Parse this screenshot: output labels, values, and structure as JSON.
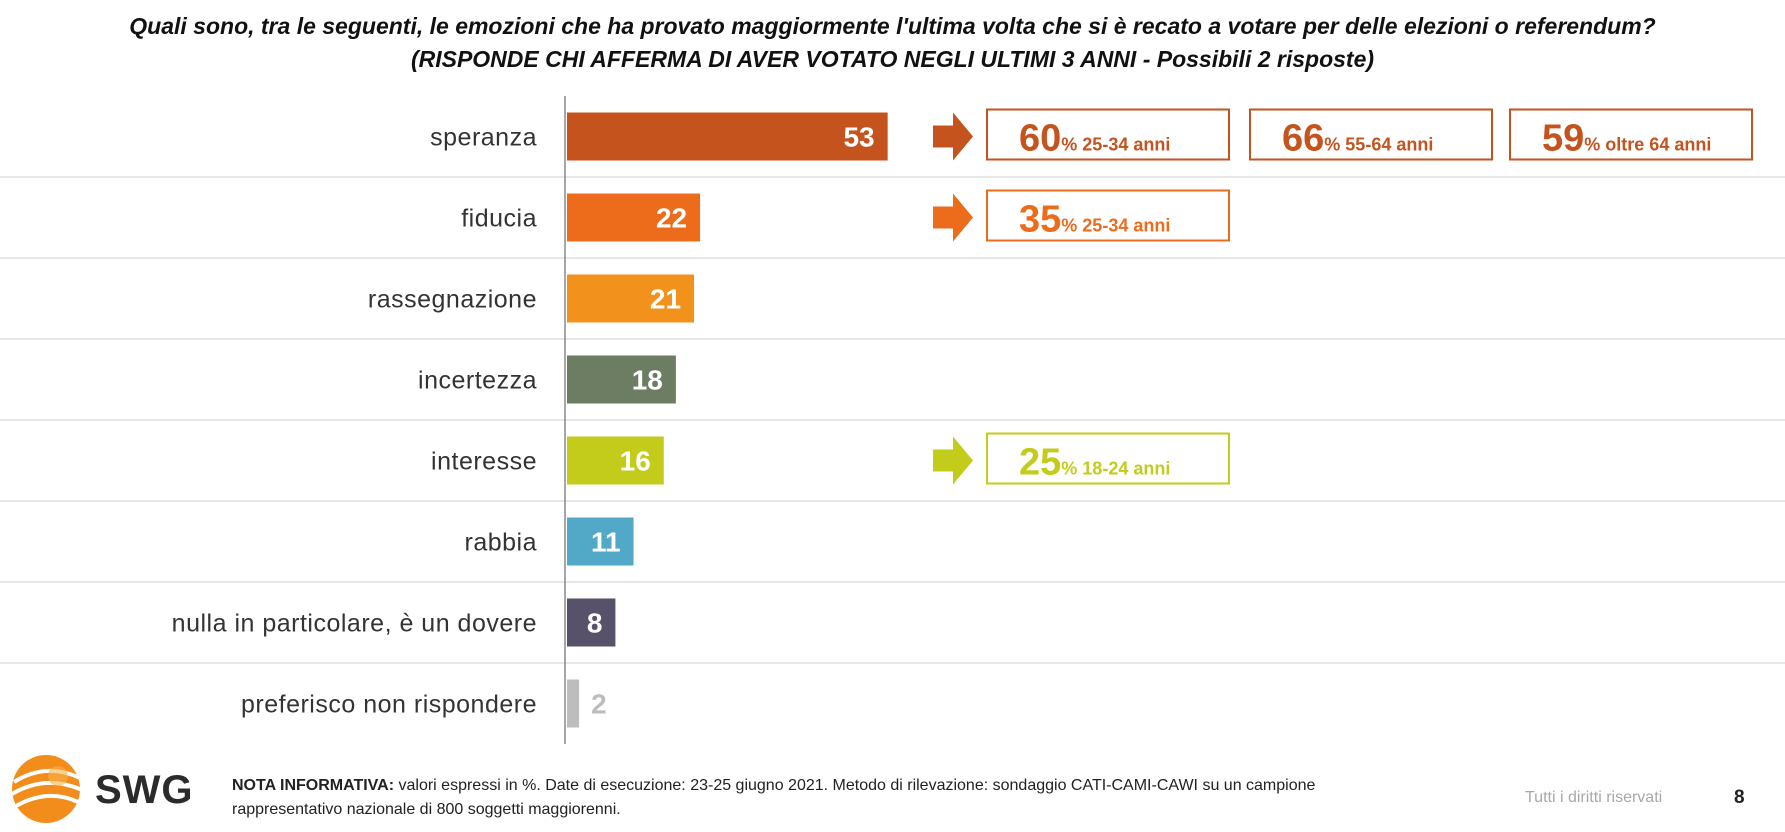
{
  "title": {
    "line1": "Quali sono, tra le seguenti, le emozioni che ha provato maggiormente l'ultima volta che si è recato a votare per delle elezioni o referendum?",
    "line2": "(RISPONDE CHI AFFERMA DI AVER VOTATO NEGLI ULTIMI 3 ANNI - Possibili 2 risposte)"
  },
  "chart_data": {
    "type": "bar",
    "orientation": "horizontal",
    "categories": [
      "speranza",
      "fiducia",
      "rassegnazione",
      "incertezza",
      "interesse",
      "rabbia",
      "nulla in particolare, è un dovere",
      "preferisco non rispondere"
    ],
    "values": [
      53,
      22,
      21,
      18,
      16,
      11,
      8,
      2
    ],
    "colors": [
      "#c4531d",
      "#ec6c1c",
      "#f2921c",
      "#6d7d64",
      "#c3cc1a",
      "#52a8c7",
      "#57526a",
      "#bdbdbd"
    ],
    "label_colors": [
      "#ffffff",
      "#ffffff",
      "#ffffff",
      "#ffffff",
      "#ffffff",
      "#ffffff",
      "#ffffff",
      "#bdbdbd"
    ],
    "unit": "%",
    "grid": false,
    "callouts": [
      {
        "row": 0,
        "color": "#c4531d",
        "boxes": [
          {
            "value": "60",
            "unit": "%",
            "label": "25-34 anni"
          },
          {
            "value": "66",
            "unit": "%",
            "label": "55-64 anni"
          },
          {
            "value": "59",
            "unit": "%",
            "label": "oltre 64 anni"
          }
        ]
      },
      {
        "row": 1,
        "color": "#ec6c1c",
        "boxes": [
          {
            "value": "35",
            "unit": "%",
            "label": "25-34 anni"
          }
        ]
      },
      {
        "row": 4,
        "color": "#c3cc1a",
        "boxes": [
          {
            "value": "25",
            "unit": "%",
            "label": "18-24 anni"
          }
        ]
      }
    ]
  },
  "footer": {
    "logo_text": "SWG",
    "note_label": "NOTA INFORMATIVA:",
    "note_text": " valori espressi in %. Date di esecuzione: 23-25 giugno 2021. Metodo di rilevazione: sondaggio CATI-CAMI-CAWI su un campione rappresentativo nazionale di 800 soggetti maggiorenni.",
    "rights": "Tutti i diritti riservati",
    "page_number": "8"
  }
}
